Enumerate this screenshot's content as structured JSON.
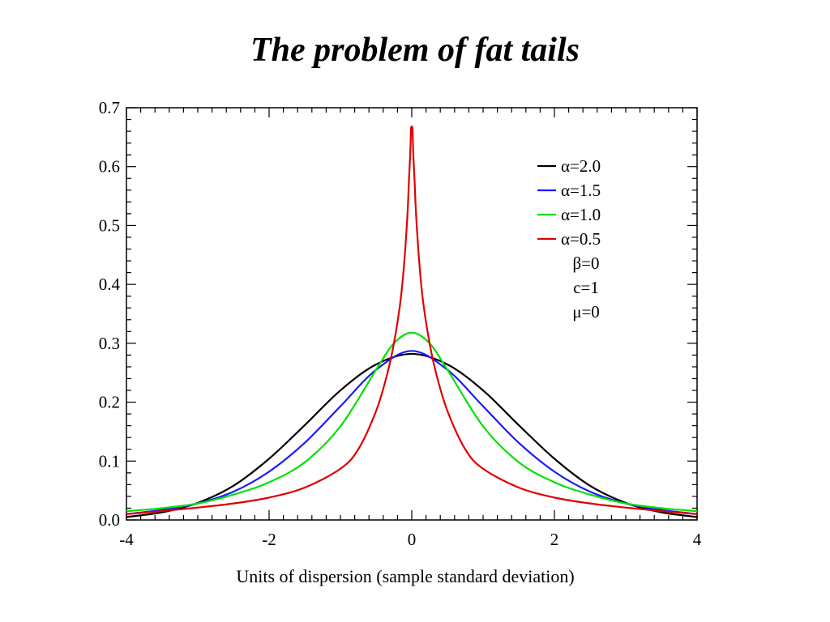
{
  "slide": {
    "title": "The problem of fat tails",
    "caption": "Units of dispersion (sample standard deviation)"
  },
  "chart_data": {
    "type": "line",
    "title": "",
    "xlabel": "Units of dispersion (sample standard deviation)",
    "ylabel": "",
    "xlim": [
      -4,
      4
    ],
    "ylim": [
      0,
      0.7
    ],
    "xticks": [
      -4,
      -2,
      0,
      2,
      4
    ],
    "yticks": [
      0.0,
      0.1,
      0.2,
      0.3,
      0.4,
      0.5,
      0.6,
      0.7
    ],
    "xtick_labels": [
      "-4",
      "-2",
      "0",
      "2",
      "4"
    ],
    "ytick_labels": [
      "0.0",
      "0.1",
      "0.2",
      "0.3",
      "0.4",
      "0.5",
      "0.6",
      "0.7"
    ],
    "legend_position": "top-right",
    "series": [
      {
        "name": "α=2.0",
        "color": "#000000",
        "x": [
          -4,
          -3.5,
          -3,
          -2.5,
          -2,
          -1.5,
          -1,
          -0.5,
          0,
          0.5,
          1,
          1.5,
          2,
          2.5,
          3,
          3.5,
          4
        ],
        "y": [
          0.005,
          0.013,
          0.029,
          0.058,
          0.104,
          0.161,
          0.22,
          0.264,
          0.282,
          0.264,
          0.22,
          0.161,
          0.104,
          0.058,
          0.029,
          0.013,
          0.005
        ]
      },
      {
        "name": "α=1.5",
        "color": "#1a1aff",
        "x": [
          -4,
          -3.5,
          -3,
          -2.5,
          -2,
          -1.5,
          -1,
          -0.5,
          0,
          0.5,
          1,
          1.5,
          2,
          2.5,
          3,
          3.5,
          4
        ],
        "y": [
          0.01,
          0.017,
          0.028,
          0.048,
          0.082,
          0.131,
          0.193,
          0.255,
          0.287,
          0.255,
          0.193,
          0.131,
          0.082,
          0.048,
          0.028,
          0.017,
          0.01
        ]
      },
      {
        "name": "α=1.0",
        "color": "#00e000",
        "x": [
          -4,
          -3.5,
          -3,
          -2.5,
          -2,
          -1.5,
          -1,
          -0.5,
          -0.25,
          0,
          0.25,
          0.5,
          1,
          1.5,
          2,
          2.5,
          3,
          3.5,
          4
        ],
        "y": [
          0.015,
          0.02,
          0.028,
          0.043,
          0.064,
          0.098,
          0.159,
          0.255,
          0.3,
          0.318,
          0.3,
          0.255,
          0.159,
          0.098,
          0.064,
          0.043,
          0.028,
          0.02,
          0.015
        ]
      },
      {
        "name": "α=0.5",
        "color": "#e00000",
        "x": [
          -4,
          -3.5,
          -3,
          -2.5,
          -2,
          -1.5,
          -1,
          -0.75,
          -0.5,
          -0.35,
          -0.25,
          -0.15,
          -0.08,
          -0.03,
          0,
          0.03,
          0.08,
          0.15,
          0.25,
          0.35,
          0.5,
          0.75,
          1,
          1.5,
          2,
          2.5,
          3,
          3.5,
          4
        ],
        "y": [
          0.01,
          0.015,
          0.021,
          0.028,
          0.038,
          0.055,
          0.087,
          0.12,
          0.185,
          0.245,
          0.3,
          0.38,
          0.48,
          0.6,
          0.668,
          0.6,
          0.48,
          0.38,
          0.3,
          0.245,
          0.185,
          0.12,
          0.087,
          0.055,
          0.038,
          0.028,
          0.021,
          0.015,
          0.01
        ]
      }
    ],
    "legend_notes": [
      "β=0",
      "c=1",
      "μ=0"
    ]
  }
}
